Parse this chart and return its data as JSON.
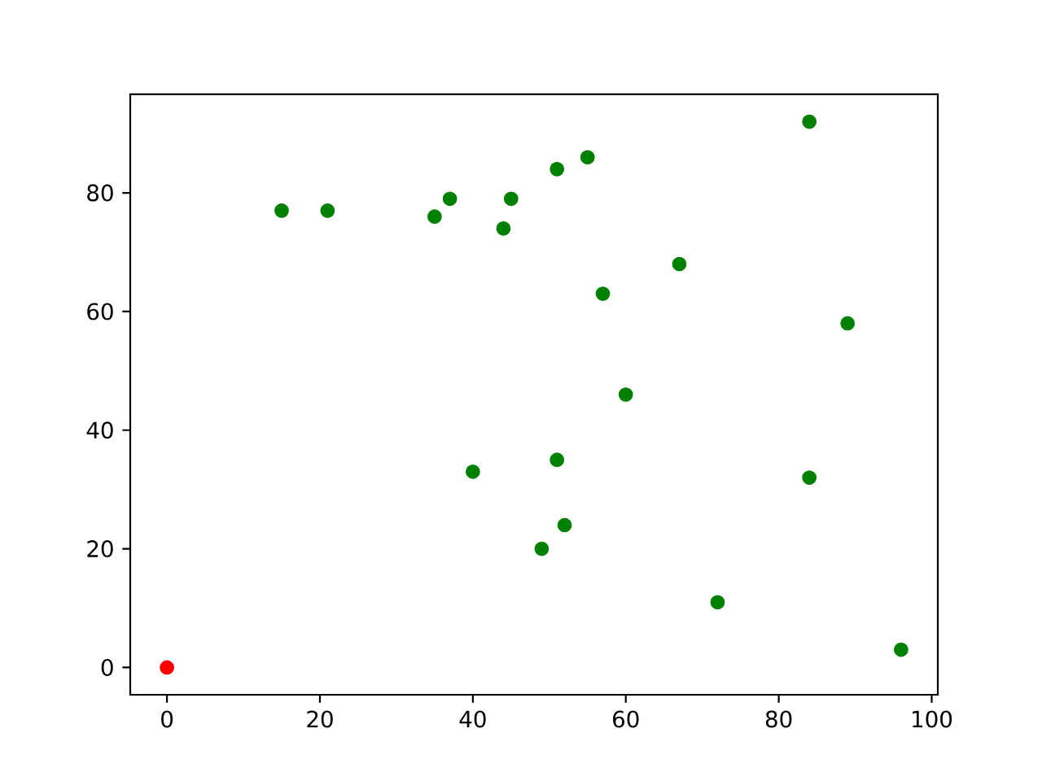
{
  "chart_data": {
    "type": "scatter",
    "xlim": [
      -4.8,
      100.8
    ],
    "ylim": [
      -4.6,
      96.6
    ],
    "xticks": [
      0,
      20,
      40,
      60,
      80,
      100
    ],
    "yticks": [
      0,
      20,
      40,
      60,
      80
    ],
    "series": [
      {
        "color": "#008000",
        "x": [
          15,
          21,
          35,
          37,
          44,
          45,
          51,
          55,
          84,
          67,
          57,
          89,
          60,
          40,
          51,
          84,
          52,
          49,
          72,
          96
        ],
        "values": [
          77,
          77,
          76,
          79,
          74,
          79,
          84,
          86,
          92,
          68,
          63,
          58,
          46,
          33,
          35,
          32,
          24,
          20,
          11,
          3
        ]
      },
      {
        "color": "#ff0000",
        "x": [
          0
        ],
        "values": [
          0
        ]
      }
    ]
  }
}
